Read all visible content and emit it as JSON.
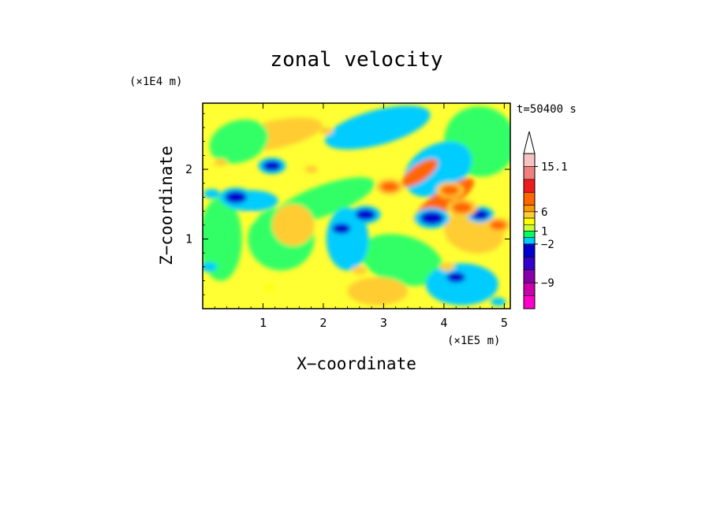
{
  "chart_data": {
    "type": "heatmap",
    "title": "zonal velocity",
    "xlabel": "X−coordinate",
    "ylabel": "Z−coordinate",
    "x_unit": "(×1E5 m)",
    "y_unit": "(×1E4 m)",
    "time_label": "t=50400 s",
    "xlim": [
      0,
      5.1
    ],
    "ylim": [
      0,
      2.95
    ],
    "x_ticks": [
      "1",
      "2",
      "3",
      "4",
      "5"
    ],
    "y_ticks": [
      "1",
      "2"
    ],
    "x_tick_values": [
      1,
      2,
      3,
      4,
      5
    ],
    "y_tick_values": [
      1,
      2
    ],
    "grid": false,
    "colorbar": {
      "labels": [
        "15.1",
        "6",
        "1",
        "−2",
        "−9"
      ],
      "label_values": [
        15.1,
        6,
        1,
        -2,
        -9
      ],
      "colors_top_to_bottom": [
        "#f7c2c2",
        "#f08080",
        "#ee1c1c",
        "#ff6600",
        "#ff9900",
        "#ffcc33",
        "#ffff00",
        "#ccff33",
        "#00ff66",
        "#00ccff",
        "#0000cc",
        "#3300cc",
        "#8800aa",
        "#cc00aa",
        "#ff00cc"
      ],
      "extend_top": true
    },
    "palette_by_level": {
      "strong_negative": "#0000cc",
      "weak_negative": "#00ccff",
      "near_zero": "#33ff66",
      "weak_positive": "#ffff00",
      "moderate_positive": "#ffcc33",
      "strong_positive": "#ff6600"
    },
    "field_description_features": [
      {
        "x": 0.55,
        "z": 1.6,
        "value": -8
      },
      {
        "x": 0.15,
        "z": 1.65,
        "value": -5
      },
      {
        "x": 1.15,
        "z": 2.05,
        "value": -6
      },
      {
        "x": 2.7,
        "z": 1.35,
        "value": -7
      },
      {
        "x": 2.3,
        "z": 1.15,
        "value": -6
      },
      {
        "x": 3.8,
        "z": 1.3,
        "value": -9
      },
      {
        "x": 4.2,
        "z": 0.45,
        "value": -6
      },
      {
        "x": 4.6,
        "z": 1.35,
        "value": -6
      },
      {
        "x": 0.1,
        "z": 0.6,
        "value": -5
      },
      {
        "x": 3.4,
        "z": 2.6,
        "value": -5
      },
      {
        "x": 4.9,
        "z": 0.1,
        "value": -4
      },
      {
        "x": 3.1,
        "z": 1.75,
        "value": 6
      },
      {
        "x": 4.1,
        "z": 1.7,
        "value": 6
      },
      {
        "x": 4.3,
        "z": 1.45,
        "value": 7
      },
      {
        "x": 4.9,
        "z": 1.2,
        "value": 5
      },
      {
        "x": 0.3,
        "z": 2.1,
        "value": 3
      },
      {
        "x": 1.8,
        "z": 2.0,
        "value": 3
      },
      {
        "x": 2.05,
        "z": 2.55,
        "value": 3
      },
      {
        "x": 4.05,
        "z": 0.6,
        "value": 4
      },
      {
        "x": 2.6,
        "z": 0.55,
        "value": 4
      },
      {
        "x": 1.1,
        "z": 0.3,
        "value": 1
      },
      {
        "x": 0.8,
        "z": 1.3,
        "value": 1
      }
    ]
  }
}
